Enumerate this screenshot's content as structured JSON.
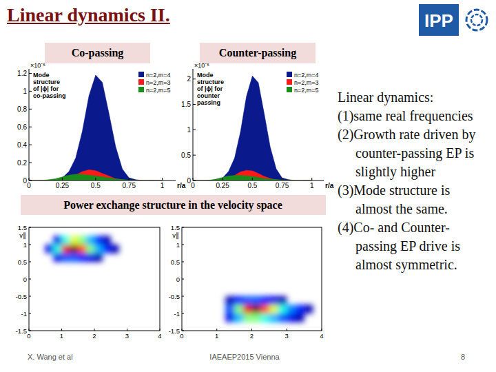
{
  "slide": {
    "title": "Linear dynamics II.",
    "logo": "IPP",
    "labels": [
      "Co-passing",
      "Counter-passing"
    ],
    "section": "Power exchange structure in the velocity space",
    "bullets_heading": "Linear dynamics:",
    "bullets": [
      "(1)same real frequencies",
      "(2)Growth rate driven by counter-passing EP is slightly higher",
      "(3)Mode structure is almost the same.",
      "(4)Co- and Counter-passing EP drive is almost symmetric."
    ],
    "footer": {
      "author": "X. Wang et al",
      "event": "IAEAEP2015 Vienna",
      "page": 8
    }
  },
  "chart_data": [
    {
      "type": "area",
      "title": "Mode structure of |ϕ| for co-passing",
      "xlabel": "r/a",
      "ylabel": "×10⁻⁵",
      "x": [
        0,
        0.05,
        0.1,
        0.15,
        0.2,
        0.25,
        0.3,
        0.35,
        0.4,
        0.45,
        0.5,
        0.55,
        0.6,
        0.65,
        0.7,
        0.75,
        0.8,
        0.85,
        0.9,
        0.95,
        1
      ],
      "series": [
        {
          "name": "n=2,m=4",
          "color": "#0a1a8c",
          "values": [
            0,
            0,
            0,
            0,
            0.01,
            0.03,
            0.1,
            0.25,
            0.55,
            0.95,
            1.18,
            1.1,
            0.75,
            0.38,
            0.13,
            0.03,
            0.01,
            0,
            0,
            0,
            0
          ]
        },
        {
          "name": "n=2,m=3",
          "color": "#ff1a1a",
          "values": [
            0,
            0,
            0,
            0,
            0,
            0.01,
            0.03,
            0.06,
            0.1,
            0.12,
            0.11,
            0.08,
            0.05,
            0.02,
            0.01,
            0,
            0,
            0,
            0,
            0,
            0
          ]
        },
        {
          "name": "n=2,m=5",
          "color": "#1a8c1a",
          "values": [
            0,
            0,
            0,
            0.01,
            0.02,
            0.04,
            0.06,
            0.07,
            0.07,
            0.06,
            0.05,
            0.04,
            0.03,
            0.02,
            0.01,
            0.005,
            0,
            0,
            0,
            0,
            0
          ]
        }
      ],
      "xlim": [
        0,
        1.1
      ],
      "xticks": [
        0,
        0.25,
        0.5,
        0.75,
        1
      ],
      "ylim": [
        0,
        1.25
      ],
      "yticks": [
        0,
        0.2,
        0.4,
        0.6,
        0.8,
        1,
        1.2
      ],
      "legend": "top-right",
      "grid": false
    },
    {
      "type": "area",
      "title": "Mode structure of |ϕ| for counter passing",
      "xlabel": "r/a",
      "ylabel": "×10⁻⁵",
      "x": [
        0,
        0.05,
        0.1,
        0.15,
        0.2,
        0.25,
        0.3,
        0.35,
        0.4,
        0.45,
        0.5,
        0.55,
        0.6,
        0.65,
        0.7,
        0.75,
        0.8,
        0.85,
        0.9,
        0.95,
        1
      ],
      "series": [
        {
          "name": "n=2,m=4",
          "color": "#0a1a8c",
          "values": [
            0,
            0,
            0,
            0,
            0.02,
            0.05,
            0.18,
            0.44,
            0.96,
            1.66,
            2.06,
            1.93,
            1.31,
            0.66,
            0.23,
            0.05,
            0.02,
            0,
            0,
            0,
            0
          ]
        },
        {
          "name": "n=2,m=3",
          "color": "#ff1a1a",
          "values": [
            0,
            0,
            0,
            0,
            0,
            0.02,
            0.05,
            0.1,
            0.17,
            0.2,
            0.19,
            0.14,
            0.08,
            0.04,
            0.01,
            0,
            0,
            0,
            0,
            0,
            0
          ]
        },
        {
          "name": "n=2,m=5",
          "color": "#1a8c1a",
          "values": [
            0,
            0,
            0,
            0.01,
            0.03,
            0.06,
            0.09,
            0.1,
            0.1,
            0.09,
            0.08,
            0.06,
            0.04,
            0.03,
            0.02,
            0.01,
            0,
            0,
            0,
            0,
            0
          ]
        }
      ],
      "xlim": [
        0,
        1.1
      ],
      "xticks": [
        0,
        0.25,
        0.5,
        0.75,
        1
      ],
      "ylim": [
        0,
        2.2
      ],
      "yticks": [
        0,
        0.5,
        1,
        1.5,
        2
      ],
      "legend": "top-right",
      "grid": false
    },
    {
      "type": "contour",
      "ylabel": "v∥",
      "xlim": [
        0,
        4
      ],
      "xticks": [
        0,
        1,
        2,
        3,
        4
      ],
      "ylim": [
        -1.5,
        1.5
      ],
      "yticks": [
        -1.5,
        -1,
        -0.5,
        0,
        0.5,
        1,
        1.5
      ],
      "grid": false,
      "cells": [
        [
          0,
          0,
          0,
          0,
          0,
          0,
          0,
          0,
          0,
          0,
          0,
          0,
          0,
          0,
          0,
          0
        ],
        [
          0,
          0,
          0,
          0.1,
          0.4,
          0.6,
          0.5,
          0.3,
          0.15,
          0.05,
          0,
          0,
          0,
          0,
          0,
          0
        ],
        [
          0,
          0,
          0.1,
          0.4,
          0.9,
          1,
          0.8,
          0.5,
          0.3,
          0.15,
          0.05,
          0,
          0,
          0,
          0,
          0
        ],
        [
          0,
          0,
          0,
          0.1,
          0.2,
          0.2,
          0.15,
          0.1,
          0.05,
          0,
          0,
          0,
          0,
          0,
          0,
          0
        ],
        [
          0,
          0,
          0,
          0,
          0,
          0,
          0,
          0,
          0,
          0,
          0,
          0,
          0,
          0,
          0,
          0
        ],
        [
          0,
          0,
          0,
          0,
          0,
          0,
          0,
          0,
          0,
          0,
          0,
          0,
          0,
          0,
          0,
          0
        ],
        [
          0,
          0,
          0,
          0,
          0,
          0,
          0,
          0,
          0,
          0,
          0,
          0,
          0,
          0,
          0,
          0
        ],
        [
          0,
          0,
          0,
          0,
          0,
          0,
          0,
          0,
          0,
          0,
          0,
          0,
          0,
          0,
          0,
          0
        ],
        [
          0,
          0,
          0,
          0,
          0,
          0,
          0,
          0,
          0,
          0,
          0,
          0,
          0,
          0,
          0,
          0
        ],
        [
          0,
          0,
          0,
          0,
          0,
          0,
          0,
          0,
          0,
          0,
          0,
          0,
          0,
          0,
          0,
          0
        ],
        [
          0,
          0,
          0,
          0,
          0,
          0,
          0,
          0,
          0,
          0,
          0,
          0,
          0,
          0,
          0,
          0
        ],
        [
          0,
          0,
          0,
          0,
          0,
          0,
          0,
          0,
          0,
          0,
          0,
          0,
          0,
          0,
          0,
          0
        ]
      ]
    },
    {
      "type": "contour",
      "ylabel": "v∥",
      "xlim": [
        0,
        4
      ],
      "xticks": [
        0,
        1,
        2,
        3,
        4
      ],
      "ylim": [
        -1.5,
        1.5
      ],
      "yticks": [
        -1.5,
        -1,
        -0.5,
        0,
        0.5,
        1,
        1.5
      ],
      "grid": false,
      "cells": [
        [
          0,
          0,
          0,
          0,
          0,
          0,
          0,
          0,
          0,
          0,
          0,
          0,
          0,
          0,
          0,
          0
        ],
        [
          0,
          0,
          0,
          0,
          0,
          0,
          0,
          0,
          0,
          0,
          0,
          0,
          0,
          0,
          0,
          0
        ],
        [
          0,
          0,
          0,
          0,
          0,
          0,
          0,
          0,
          0,
          0,
          0,
          0,
          0,
          0,
          0,
          0
        ],
        [
          0,
          0,
          0,
          0,
          0,
          0,
          0,
          0,
          0,
          0,
          0,
          0,
          0,
          0,
          0,
          0
        ],
        [
          0,
          0,
          0,
          0,
          0,
          0,
          0,
          0,
          0,
          0,
          0,
          0,
          0,
          0,
          0,
          0
        ],
        [
          0,
          0,
          0,
          0,
          0,
          0,
          0,
          0,
          0,
          0,
          0,
          0,
          0,
          0,
          0,
          0
        ],
        [
          0,
          0,
          0,
          0,
          0,
          0,
          0,
          0,
          0,
          0,
          0,
          0,
          0,
          0,
          0,
          0
        ],
        [
          0,
          0,
          0,
          0,
          0,
          0,
          0,
          0,
          0,
          0,
          0,
          0,
          0,
          0,
          0,
          0
        ],
        [
          0,
          0,
          0,
          0,
          0,
          0.05,
          0.15,
          0.2,
          0.2,
          0.15,
          0.1,
          0.05,
          0,
          0,
          0,
          0
        ],
        [
          0,
          0,
          0,
          0,
          0,
          0.2,
          0.5,
          0.9,
          1,
          0.8,
          0.6,
          0.4,
          0.25,
          0.15,
          0.05,
          0
        ],
        [
          0,
          0,
          0,
          0,
          0,
          0.1,
          0.3,
          0.5,
          0.5,
          0.4,
          0.3,
          0.2,
          0.1,
          0.05,
          0,
          0
        ],
        [
          0,
          0,
          0,
          0,
          0,
          0,
          0,
          0,
          0,
          0,
          0,
          0,
          0,
          0,
          0,
          0
        ]
      ]
    }
  ]
}
